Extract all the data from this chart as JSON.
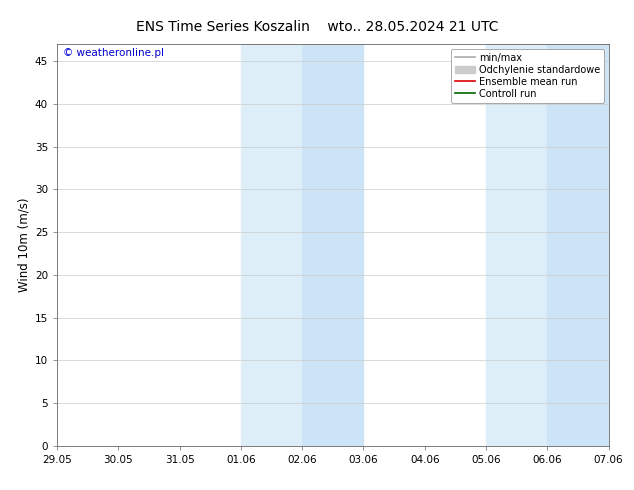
{
  "title_left": "ENS Time Series Koszalin",
  "title_right": "wto.. 28.05.2024 21 UTC",
  "ylabel": "Wind 10m (m/s)",
  "watermark": "© weatheronline.pl",
  "watermark_color": "#0000cc",
  "xlim_dates": [
    "29.05",
    "30.05",
    "31.05",
    "01.06",
    "02.06",
    "03.06",
    "04.06",
    "05.06",
    "06.06",
    "07.06"
  ],
  "ylim": [
    0,
    47
  ],
  "yticks": [
    0,
    5,
    10,
    15,
    20,
    25,
    30,
    35,
    40,
    45
  ],
  "shade_bands": [
    {
      "xstart": 3.0,
      "xend": 4.0,
      "color": "#ddeef8"
    },
    {
      "xstart": 4.0,
      "xend": 5.0,
      "color": "#cce4f5"
    },
    {
      "xstart": 7.0,
      "xend": 8.0,
      "color": "#ddeef8"
    },
    {
      "xstart": 8.0,
      "xend": 9.0,
      "color": "#cce4f5"
    }
  ],
  "legend_entries": [
    {
      "label": "min/max",
      "color": "#aaaaaa",
      "linewidth": 1.2,
      "linestyle": "-",
      "type": "line"
    },
    {
      "label": "Odchylenie standardowe",
      "color": "#cccccc",
      "linewidth": 5,
      "linestyle": "-",
      "type": "patch"
    },
    {
      "label": "Ensemble mean run",
      "color": "#dd0000",
      "linewidth": 1.2,
      "linestyle": "-",
      "type": "line"
    },
    {
      "label": "Controll run",
      "color": "#006600",
      "linewidth": 1.2,
      "linestyle": "-",
      "type": "line"
    }
  ],
  "bg_color": "#ffffff",
  "grid_color": "#cccccc",
  "tick_label_fontsize": 7.5,
  "title_fontsize": 10,
  "ylabel_fontsize": 8.5,
  "legend_fontsize": 7
}
